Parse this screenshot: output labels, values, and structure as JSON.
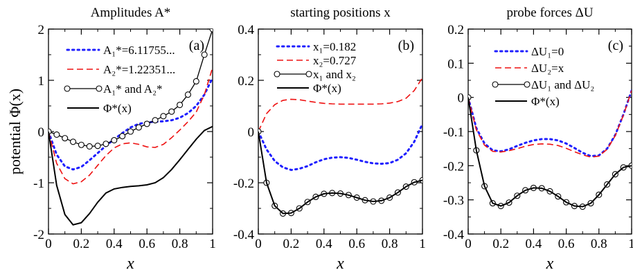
{
  "figure": {
    "ylabel": "potential Φ(x)",
    "xlabel": "x"
  },
  "colors": {
    "blue": "#1f1fff",
    "red": "#ee1111",
    "black": "#000000"
  },
  "chart_data": [
    {
      "type": "line",
      "title": "Amplitudes A*",
      "panel_label": "(a)",
      "xlabel": "x",
      "ylabel": "potential Φ(x)",
      "xlim": [
        0,
        1
      ],
      "ylim": [
        -2,
        2
      ],
      "x_ticks": [
        "0",
        "0.2",
        "0.4",
        "0.6",
        "0.8",
        "1"
      ],
      "y_ticks": [
        "-2",
        "-1",
        "0",
        "1",
        "2"
      ],
      "legend_placement": "top-right",
      "series": [
        {
          "name": "A₁*=6.11755...",
          "style": "dotted",
          "color": "#1f1fff",
          "x": [
            0,
            0.05,
            0.1,
            0.15,
            0.2,
            0.25,
            0.3,
            0.35,
            0.4,
            0.45,
            0.5,
            0.55,
            0.6,
            0.65,
            0.7,
            0.75,
            0.8,
            0.85,
            0.9,
            0.95,
            1.0
          ],
          "y": [
            0,
            -0.45,
            -0.68,
            -0.74,
            -0.69,
            -0.56,
            -0.42,
            -0.28,
            -0.15,
            -0.03,
            0.08,
            0.15,
            0.18,
            0.19,
            0.2,
            0.22,
            0.27,
            0.36,
            0.5,
            0.72,
            1.05
          ]
        },
        {
          "name": "A₂*=1.22351...",
          "style": "dashed",
          "color": "#ee1111",
          "x": [
            0,
            0.05,
            0.1,
            0.15,
            0.2,
            0.25,
            0.3,
            0.35,
            0.4,
            0.45,
            0.5,
            0.55,
            0.6,
            0.65,
            0.7,
            0.75,
            0.8,
            0.85,
            0.9,
            0.95,
            1.0
          ],
          "y": [
            0,
            -0.62,
            -0.92,
            -1.02,
            -0.98,
            -0.85,
            -0.66,
            -0.47,
            -0.32,
            -0.24,
            -0.22,
            -0.25,
            -0.3,
            -0.31,
            -0.25,
            -0.12,
            0.03,
            0.19,
            0.38,
            0.72,
            1.25
          ]
        },
        {
          "name": "A₁* and A₂*",
          "style": "line-circles",
          "color": "#000000",
          "x": [
            0,
            0.05,
            0.1,
            0.15,
            0.2,
            0.25,
            0.3,
            0.35,
            0.4,
            0.45,
            0.5,
            0.55,
            0.6,
            0.65,
            0.7,
            0.75,
            0.8,
            0.85,
            0.9,
            0.95,
            1.0
          ],
          "y": [
            0,
            -0.06,
            -0.13,
            -0.2,
            -0.26,
            -0.29,
            -0.28,
            -0.24,
            -0.17,
            -0.09,
            0.0,
            0.08,
            0.15,
            0.22,
            0.3,
            0.39,
            0.52,
            0.72,
            0.98,
            1.5,
            2.0
          ]
        },
        {
          "name": "Φ*(x)",
          "style": "solid",
          "color": "#000000",
          "x": [
            0,
            0.05,
            0.1,
            0.15,
            0.2,
            0.25,
            0.3,
            0.35,
            0.4,
            0.45,
            0.5,
            0.55,
            0.6,
            0.65,
            0.7,
            0.75,
            0.8,
            0.85,
            0.9,
            0.95,
            1.0
          ],
          "y": [
            0,
            -1.05,
            -1.62,
            -1.82,
            -1.78,
            -1.6,
            -1.38,
            -1.2,
            -1.12,
            -1.09,
            -1.07,
            -1.06,
            -1.04,
            -1.0,
            -0.9,
            -0.74,
            -0.55,
            -0.35,
            -0.15,
            0.02,
            0.1
          ]
        }
      ]
    },
    {
      "type": "line",
      "title": "starting positions x",
      "panel_label": "(b)",
      "xlabel": "x",
      "xlim": [
        0,
        1
      ],
      "ylim": [
        -0.4,
        0.4
      ],
      "x_ticks": [
        "0",
        "0.2",
        "0.4",
        "0.6",
        "0.8",
        "1"
      ],
      "y_ticks": [
        "-0.4",
        "-0.2",
        "0",
        "0.2",
        "0.4"
      ],
      "legend_placement": "top-right",
      "series": [
        {
          "name": "x₁=0.182",
          "style": "dotted",
          "color": "#1f1fff",
          "x": [
            0,
            0.05,
            0.1,
            0.15,
            0.2,
            0.25,
            0.3,
            0.35,
            0.4,
            0.45,
            0.5,
            0.55,
            0.6,
            0.65,
            0.7,
            0.75,
            0.8,
            0.85,
            0.9,
            0.95,
            1.0
          ],
          "y": [
            0,
            -0.07,
            -0.115,
            -0.14,
            -0.15,
            -0.145,
            -0.135,
            -0.12,
            -0.108,
            -0.102,
            -0.1,
            -0.103,
            -0.11,
            -0.118,
            -0.124,
            -0.126,
            -0.123,
            -0.11,
            -0.085,
            -0.04,
            0.03
          ]
        },
        {
          "name": "x₂=0.727",
          "style": "dashed",
          "color": "#ee1111",
          "x": [
            0,
            0.05,
            0.1,
            0.15,
            0.2,
            0.25,
            0.3,
            0.35,
            0.4,
            0.45,
            0.5,
            0.55,
            0.6,
            0.65,
            0.7,
            0.75,
            0.8,
            0.85,
            0.9,
            0.95,
            1.0
          ],
          "y": [
            0,
            0.07,
            0.105,
            0.122,
            0.126,
            0.124,
            0.119,
            0.114,
            0.11,
            0.108,
            0.107,
            0.107,
            0.107,
            0.107,
            0.107,
            0.108,
            0.111,
            0.117,
            0.13,
            0.16,
            0.21
          ]
        },
        {
          "name": "x₁ and x₂",
          "style": "line-circles",
          "color": "#000000",
          "x": [
            0,
            0.05,
            0.1,
            0.15,
            0.2,
            0.25,
            0.3,
            0.35,
            0.4,
            0.45,
            0.5,
            0.55,
            0.6,
            0.65,
            0.7,
            0.75,
            0.8,
            0.85,
            0.9,
            0.95,
            1.0
          ],
          "y": [
            0,
            -0.2,
            -0.29,
            -0.32,
            -0.318,
            -0.3,
            -0.275,
            -0.255,
            -0.243,
            -0.24,
            -0.242,
            -0.248,
            -0.258,
            -0.268,
            -0.273,
            -0.27,
            -0.258,
            -0.238,
            -0.215,
            -0.198,
            -0.19
          ]
        },
        {
          "name": "Φ*(x)",
          "style": "solid",
          "color": "#000000",
          "x": [
            0,
            0.05,
            0.1,
            0.15,
            0.2,
            0.25,
            0.3,
            0.35,
            0.4,
            0.45,
            0.5,
            0.55,
            0.6,
            0.65,
            0.7,
            0.75,
            0.8,
            0.85,
            0.9,
            0.95,
            1.0
          ],
          "y": [
            0,
            -0.2,
            -0.29,
            -0.32,
            -0.318,
            -0.3,
            -0.275,
            -0.255,
            -0.243,
            -0.24,
            -0.242,
            -0.248,
            -0.258,
            -0.268,
            -0.273,
            -0.27,
            -0.258,
            -0.238,
            -0.215,
            -0.198,
            -0.19
          ]
        }
      ]
    },
    {
      "type": "line",
      "title": "probe forces ΔU",
      "panel_label": "(c)",
      "xlabel": "x",
      "xlim": [
        0,
        1
      ],
      "ylim": [
        -0.4,
        0.2
      ],
      "x_ticks": [
        "0",
        "0.2",
        "0.4",
        "0.6",
        "0.8",
        "1"
      ],
      "y_ticks": [
        "-0.4",
        "-0.3",
        "-0.2",
        "-0.1",
        "0",
        "0.1",
        "0.2"
      ],
      "legend_placement": "top-right",
      "series": [
        {
          "name": "ΔU₁=0",
          "style": "dotted",
          "color": "#1f1fff",
          "x": [
            0,
            0.05,
            0.1,
            0.15,
            0.2,
            0.25,
            0.3,
            0.35,
            0.4,
            0.45,
            0.5,
            0.55,
            0.6,
            0.65,
            0.7,
            0.75,
            0.8,
            0.85,
            0.9,
            0.95,
            1.0
          ],
          "y": [
            0,
            -0.09,
            -0.135,
            -0.155,
            -0.158,
            -0.152,
            -0.142,
            -0.133,
            -0.126,
            -0.122,
            -0.122,
            -0.126,
            -0.135,
            -0.148,
            -0.162,
            -0.172,
            -0.17,
            -0.15,
            -0.11,
            -0.05,
            0.02
          ]
        },
        {
          "name": "ΔU₂=x",
          "style": "dashed",
          "color": "#ee1111",
          "x": [
            0,
            0.05,
            0.1,
            0.15,
            0.2,
            0.25,
            0.3,
            0.35,
            0.4,
            0.45,
            0.5,
            0.55,
            0.6,
            0.65,
            0.7,
            0.75,
            0.8,
            0.85,
            0.9,
            0.95,
            1.0
          ],
          "y": [
            0,
            -0.095,
            -0.14,
            -0.158,
            -0.16,
            -0.156,
            -0.15,
            -0.143,
            -0.138,
            -0.136,
            -0.137,
            -0.141,
            -0.149,
            -0.159,
            -0.168,
            -0.175,
            -0.172,
            -0.152,
            -0.112,
            -0.052,
            0.02
          ]
        },
        {
          "name": "ΔU₁ and ΔU₂",
          "style": "line-circles",
          "color": "#000000",
          "x": [
            0,
            0.05,
            0.1,
            0.15,
            0.2,
            0.25,
            0.3,
            0.35,
            0.4,
            0.45,
            0.5,
            0.55,
            0.6,
            0.65,
            0.7,
            0.75,
            0.8,
            0.85,
            0.9,
            0.95,
            1.0
          ],
          "y": [
            0,
            -0.155,
            -0.26,
            -0.31,
            -0.318,
            -0.308,
            -0.288,
            -0.272,
            -0.265,
            -0.266,
            -0.275,
            -0.29,
            -0.307,
            -0.318,
            -0.32,
            -0.31,
            -0.285,
            -0.255,
            -0.225,
            -0.205,
            -0.2
          ]
        },
        {
          "name": "Φ*(x)",
          "style": "solid",
          "color": "#000000",
          "x": [
            0,
            0.05,
            0.1,
            0.15,
            0.2,
            0.25,
            0.3,
            0.35,
            0.4,
            0.45,
            0.5,
            0.55,
            0.6,
            0.65,
            0.7,
            0.75,
            0.8,
            0.85,
            0.9,
            0.95,
            1.0
          ],
          "y": [
            0,
            -0.155,
            -0.26,
            -0.31,
            -0.318,
            -0.308,
            -0.288,
            -0.272,
            -0.265,
            -0.266,
            -0.275,
            -0.29,
            -0.307,
            -0.318,
            -0.32,
            -0.31,
            -0.285,
            -0.255,
            -0.225,
            -0.205,
            -0.2
          ]
        }
      ]
    }
  ]
}
